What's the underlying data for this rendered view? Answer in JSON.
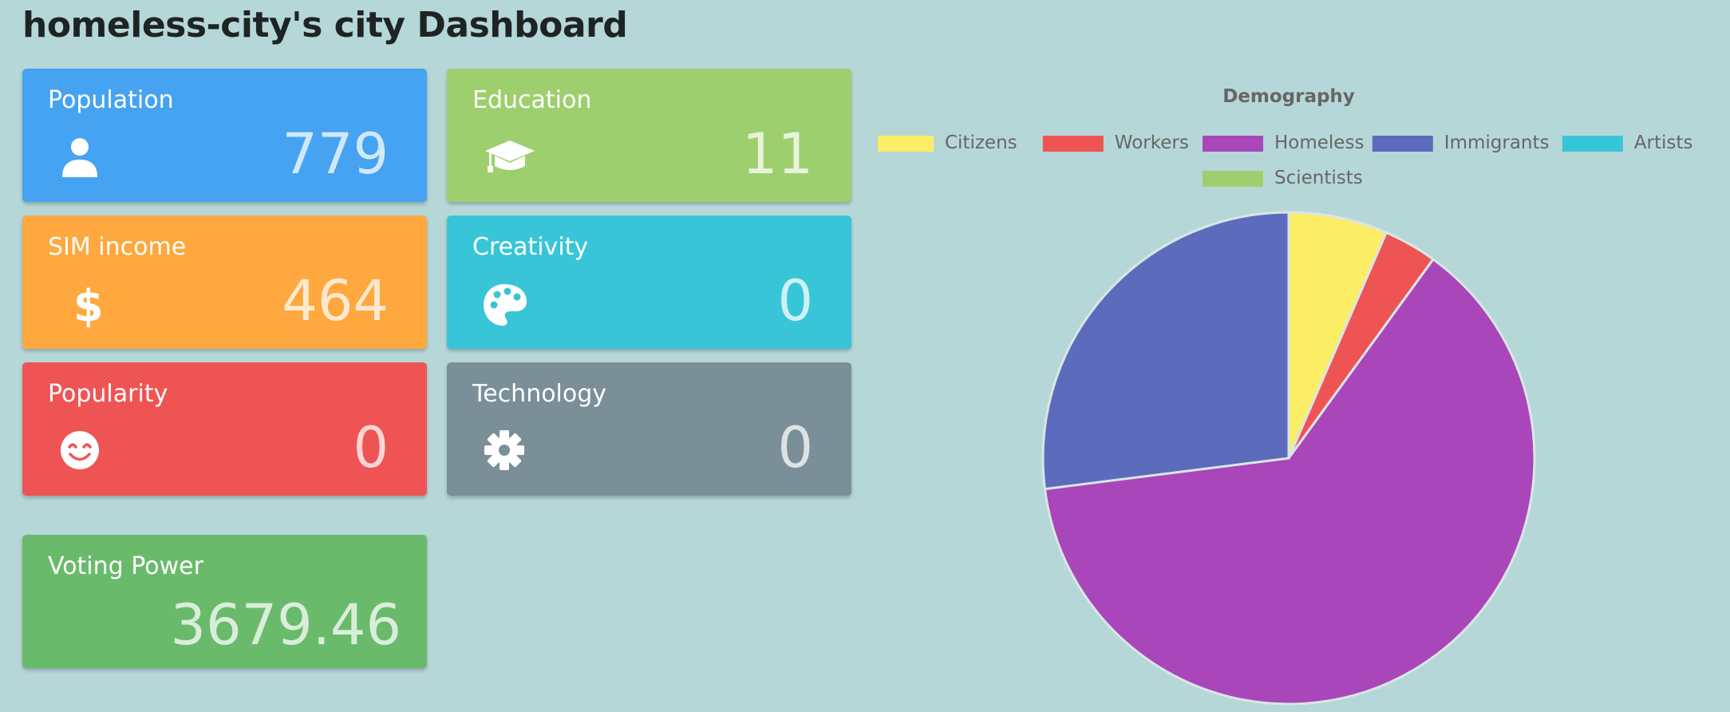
{
  "header": {
    "title": "homeless-city's city Dashboard"
  },
  "cards": {
    "population": {
      "label": "Population",
      "value": "779",
      "icon": "person-icon",
      "color": "#46a3f1"
    },
    "education": {
      "label": "Education",
      "value": "11",
      "icon": "graduation-cap-icon",
      "color": "#9ecf6e"
    },
    "sim_income": {
      "label": "SIM income",
      "value": "464",
      "icon": "dollar-icon",
      "color": "#fea83f"
    },
    "creativity": {
      "label": "Creativity",
      "value": "0",
      "icon": "palette-icon",
      "color": "#38c5d7"
    },
    "popularity": {
      "label": "Popularity",
      "value": "0",
      "icon": "smile-icon",
      "color": "#ef5454"
    },
    "technology": {
      "label": "Technology",
      "value": "0",
      "icon": "gear-icon",
      "color": "#7a8f98"
    },
    "voting_power": {
      "label": "Voting Power",
      "value": "3679.46",
      "color": "#6aba6c"
    }
  },
  "chart_data": {
    "type": "pie",
    "title": "Demography",
    "legend_position": "top",
    "categories": [
      "Citizens",
      "Workers",
      "Homeless",
      "Immigrants",
      "Artists",
      "Scientists"
    ],
    "values": [
      6.5,
      3.5,
      63.0,
      27.0,
      0,
      0
    ],
    "colors": [
      "#fced66",
      "#ef5454",
      "#a946ba",
      "#5d6bbc",
      "#38c5d7",
      "#9ecf6e"
    ]
  }
}
